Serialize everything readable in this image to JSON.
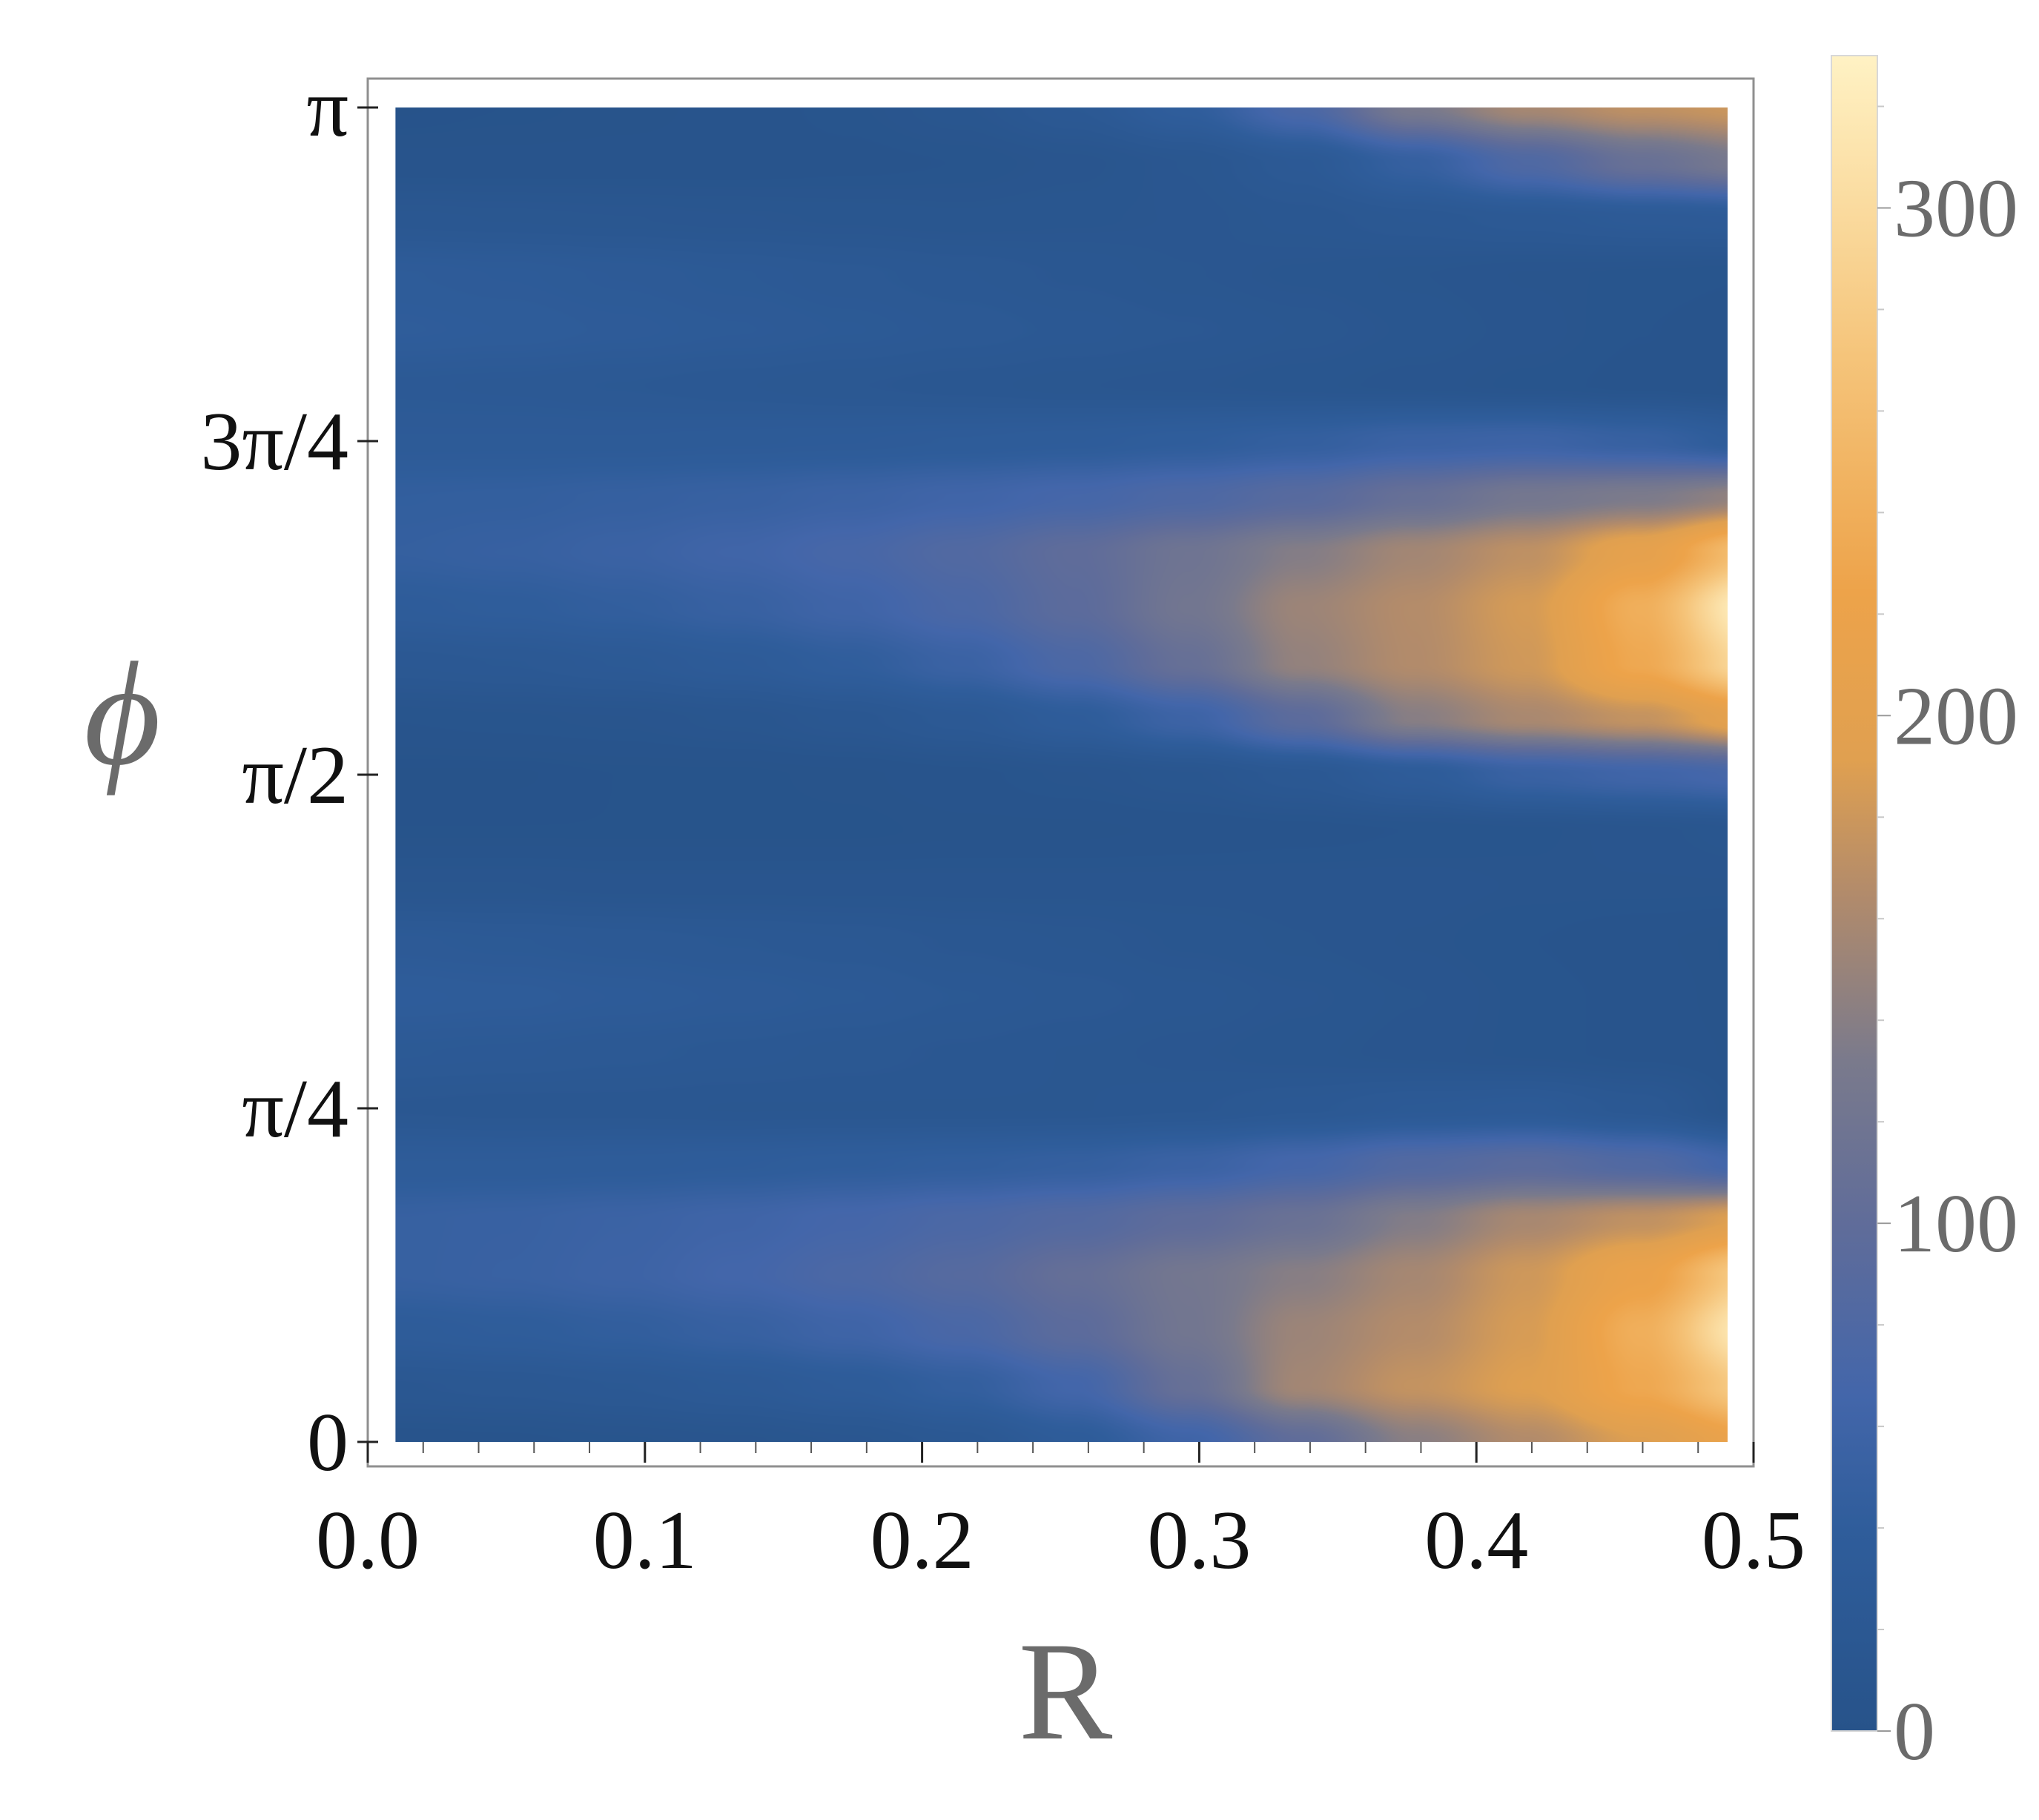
{
  "chart_data": {
    "type": "heatmap",
    "title": "",
    "xlabel": "R",
    "ylabel": "ϕ",
    "xlim": [
      0.0,
      0.5
    ],
    "ylim": [
      0,
      3.14159
    ],
    "x_ticks": [
      {
        "value": 0.0,
        "label": "0.0"
      },
      {
        "value": 0.1,
        "label": "0.1"
      },
      {
        "value": 0.2,
        "label": "0.2"
      },
      {
        "value": 0.3,
        "label": "0.3"
      },
      {
        "value": 0.4,
        "label": "0.4"
      },
      {
        "value": 0.5,
        "label": "0.5"
      }
    ],
    "y_ticks": [
      {
        "value": 0,
        "label": "0"
      },
      {
        "value": 0.7854,
        "label": "π/4"
      },
      {
        "value": 1.5708,
        "label": "π/2"
      },
      {
        "value": 2.3562,
        "label": "3π/4"
      },
      {
        "value": 3.1416,
        "label": "π"
      }
    ],
    "data_x_range": [
      0.01,
      0.5
    ],
    "data_y_range": [
      0,
      3.1416
    ],
    "x": [
      0.01,
      0.0508,
      0.0917,
      0.1325,
      0.1733,
      0.2142,
      0.255,
      0.2958,
      0.3367,
      0.3775,
      0.4183,
      0.4592,
      0.5
    ],
    "y": [
      0.0,
      0.1309,
      0.2618,
      0.3927,
      0.5236,
      0.6545,
      0.7854,
      0.9163,
      1.0472,
      1.1781,
      1.309,
      1.4399,
      1.5708,
      1.7017,
      1.8326,
      1.9635,
      2.0944,
      2.2253,
      2.3562,
      2.4871,
      2.618,
      2.7489,
      2.8798,
      3.0107,
      3.1416
    ],
    "z": [
      [
        4,
        5,
        7,
        9,
        13,
        20,
        35,
        61,
        100,
        141,
        165,
        190,
        220
      ],
      [
        17,
        19,
        22,
        27,
        34,
        45,
        66,
        108,
        156,
        175,
        191,
        231,
        282
      ],
      [
        35,
        38,
        43,
        50,
        60,
        74,
        95,
        122,
        152,
        166,
        186,
        241,
        322
      ],
      [
        50,
        53,
        58,
        66,
        76,
        88,
        106,
        124,
        140,
        158,
        181,
        217,
        283
      ],
      [
        50,
        52,
        56,
        61,
        68,
        76,
        85,
        98,
        112,
        137,
        159,
        173,
        193
      ],
      [
        34,
        34,
        35,
        37,
        40,
        43,
        47,
        55,
        68,
        84,
        93,
        82,
        62
      ],
      [
        17,
        16,
        16,
        15,
        15,
        15,
        15,
        17,
        21,
        26,
        28,
        20,
        4
      ],
      [
        26,
        25,
        23,
        21,
        19,
        17,
        15,
        13,
        11,
        9,
        7,
        5,
        3
      ],
      [
        37,
        35,
        32,
        29,
        26,
        22,
        19,
        16,
        13,
        10,
        7,
        5,
        2
      ],
      [
        28,
        26,
        24,
        22,
        20,
        17,
        15,
        12,
        10,
        8,
        6,
        4,
        2
      ],
      [
        10,
        10,
        9,
        9,
        9,
        9,
        9,
        9,
        9,
        9,
        8,
        8,
        8
      ],
      [
        2,
        2,
        2,
        2,
        2,
        3,
        3,
        4,
        5,
        6,
        7,
        9,
        12
      ],
      [
        1,
        1,
        2,
        2,
        3,
        5,
        8,
        12,
        20,
        34,
        53,
        62,
        71
      ],
      [
        6,
        7,
        8,
        11,
        16,
        24,
        37,
        58,
        95,
        140,
        160,
        175,
        205
      ],
      [
        20,
        22,
        26,
        32,
        41,
        55,
        77,
        108,
        147,
        165,
        182,
        232,
        301
      ],
      [
        36,
        39,
        44,
        51,
        61,
        75,
        95,
        122,
        152,
        166,
        185,
        241,
        328
      ],
      [
        47,
        50,
        55,
        62,
        71,
        83,
        99,
        118,
        138,
        156,
        172,
        205,
        265
      ],
      [
        44,
        45,
        48,
        51,
        56,
        62,
        69,
        78,
        90,
        108,
        125,
        133,
        147
      ],
      [
        30,
        30,
        30,
        31,
        32,
        34,
        36,
        40,
        46,
        55,
        58,
        50,
        35
      ],
      [
        25,
        24,
        22,
        20,
        18,
        16,
        14,
        13,
        11,
        9,
        7,
        5,
        3
      ],
      [
        38,
        36,
        33,
        30,
        27,
        24,
        21,
        18,
        15,
        12,
        9,
        6,
        4
      ],
      [
        34,
        32,
        29,
        26,
        23,
        20,
        17,
        14,
        12,
        10,
        8,
        7,
        6
      ],
      [
        16,
        15,
        14,
        13,
        12,
        11,
        12,
        13,
        16,
        20,
        24,
        28,
        30
      ],
      [
        4,
        4,
        4,
        4,
        5,
        6,
        9,
        14,
        25,
        48,
        80,
        110,
        130
      ],
      [
        1,
        2,
        3,
        4,
        7,
        12,
        22,
        40,
        75,
        130,
        158,
        172,
        180
      ]
    ],
    "colorbar": {
      "min": 0,
      "max": 330,
      "ticks": [
        {
          "value": 0,
          "label": "0"
        },
        {
          "value": 100,
          "label": "100"
        },
        {
          "value": 200,
          "label": "200"
        },
        {
          "value": 300,
          "label": "300"
        }
      ]
    },
    "colormap": [
      {
        "t": 0.0,
        "color": "#27538a"
      },
      {
        "t": 0.12,
        "color": "#2f5d9b"
      },
      {
        "t": 0.2,
        "color": "#4366aa"
      },
      {
        "t": 0.3,
        "color": "#5f6c9a"
      },
      {
        "t": 0.4,
        "color": "#7a7a8c"
      },
      {
        "t": 0.5,
        "color": "#b28b6b"
      },
      {
        "t": 0.58,
        "color": "#e0a050"
      },
      {
        "t": 0.68,
        "color": "#eda34a"
      },
      {
        "t": 0.82,
        "color": "#f5c47a"
      },
      {
        "t": 1.0,
        "color": "#fff2c4"
      }
    ],
    "grid": false,
    "legend": "colorbar-right"
  }
}
